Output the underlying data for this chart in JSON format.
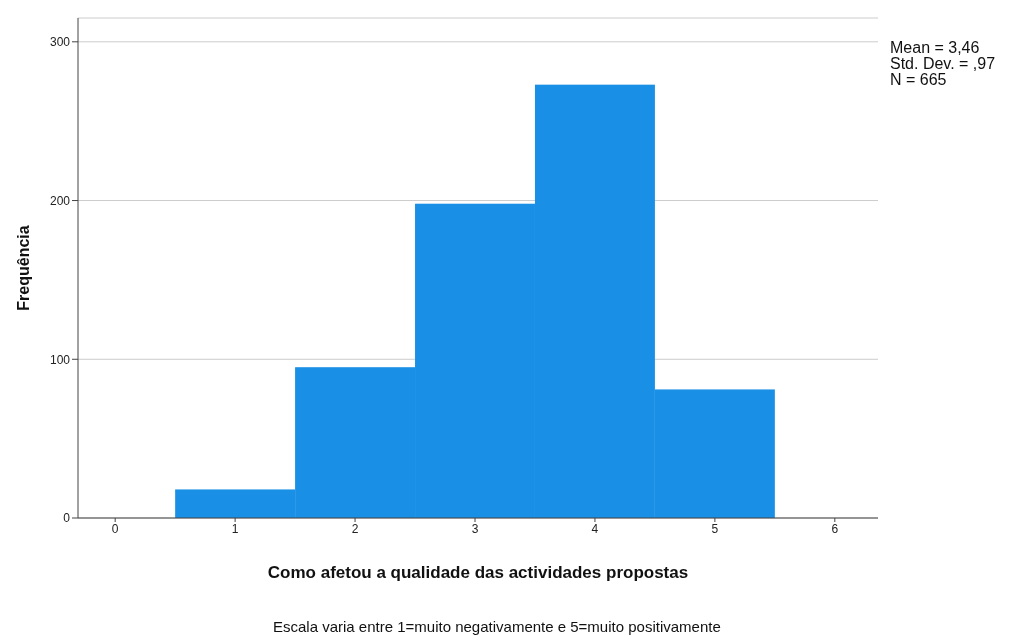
{
  "chart_data": {
    "type": "histogram",
    "xlabel": "Como afetou a qualidade das actividades propostas",
    "ylabel": "Frequência",
    "bins": [
      0.5,
      1.5,
      2.5,
      3.5,
      4.5,
      5.5
    ],
    "values": [
      18,
      95,
      198,
      273,
      81
    ],
    "color": "#1990e6",
    "xlim": [
      -0.31,
      6.36
    ],
    "xticks": [
      0,
      1,
      2,
      3,
      4,
      5,
      6
    ],
    "ylim": [
      0,
      315
    ],
    "yticks": [
      0,
      100,
      200,
      300
    ],
    "grid": "y",
    "annotations": [
      "Mean = 3,46",
      "Std. Dev. = ,97",
      "N = 665",
      "Escala varia entre 1=muito negativamente e 5=muito positivamente"
    ]
  }
}
